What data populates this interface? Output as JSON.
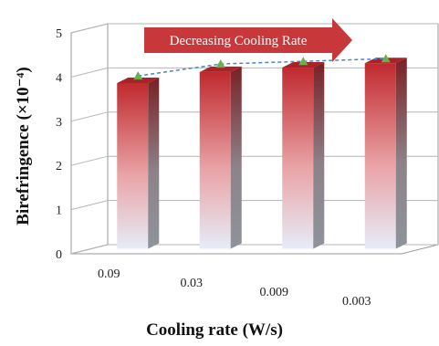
{
  "chart_data": {
    "type": "bar",
    "categories": [
      "0.09",
      "0.03",
      "0.009",
      "0.003"
    ],
    "series": [
      {
        "values": [
          3.75,
          4.0,
          4.1,
          4.2
        ]
      }
    ],
    "markers": [
      3.85,
      4.12,
      4.18,
      4.24
    ],
    "title": "",
    "xlabel": "Cooling rate (W/s)",
    "ylabel": "Birefringence (×10⁻⁴)",
    "ylim": [
      0,
      5
    ],
    "yticks": [
      "0",
      "1",
      "2",
      "3",
      "4",
      "5"
    ],
    "annotation": "Decreasing Cooling Rate",
    "grid": true,
    "colors": {
      "bar_top": "#c0292e",
      "bar_bottom": "#e8eef8",
      "bar_side": "#8a8f96",
      "marker": "#6ab04c",
      "trend_line": "#4a86c8",
      "arrow": "#c8373a"
    }
  }
}
